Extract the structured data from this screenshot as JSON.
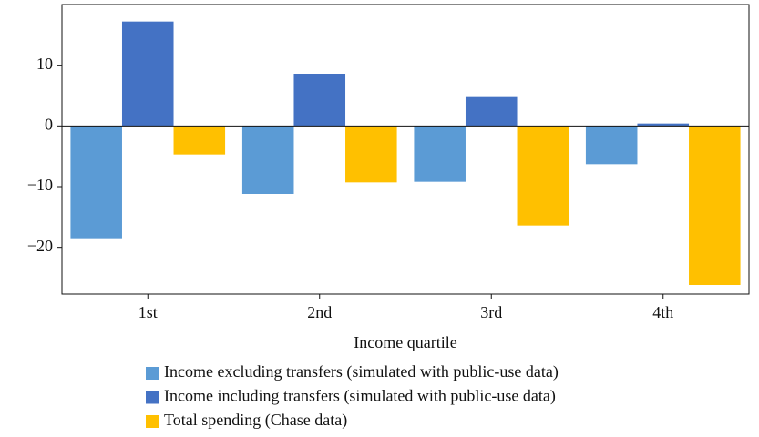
{
  "chart_data": {
    "type": "bar",
    "x_label": "Income quartile",
    "categories": [
      "1st",
      "2nd",
      "3rd",
      "4th"
    ],
    "series": [
      {
        "name": "Income excluding transfers (simulated with public-use data)",
        "color": "#5b9bd5",
        "values": [
          -18.5,
          -11.2,
          -9.2,
          -6.3
        ]
      },
      {
        "name": "Income including transfers (simulated with public-use data)",
        "color": "#4472c4",
        "values": [
          17.2,
          8.6,
          4.9,
          0.4
        ]
      },
      {
        "name": "Total spending (Chase data)",
        "color": "#ffc000",
        "values": [
          -4.7,
          -9.3,
          -16.4,
          -26.2
        ]
      }
    ],
    "ylim": [
      -27.7,
      20
    ],
    "yticks": [
      {
        "value": -20,
        "label": "−20"
      },
      {
        "value": -10,
        "label": "−10"
      },
      0,
      10
    ],
    "legend": "bottom"
  }
}
